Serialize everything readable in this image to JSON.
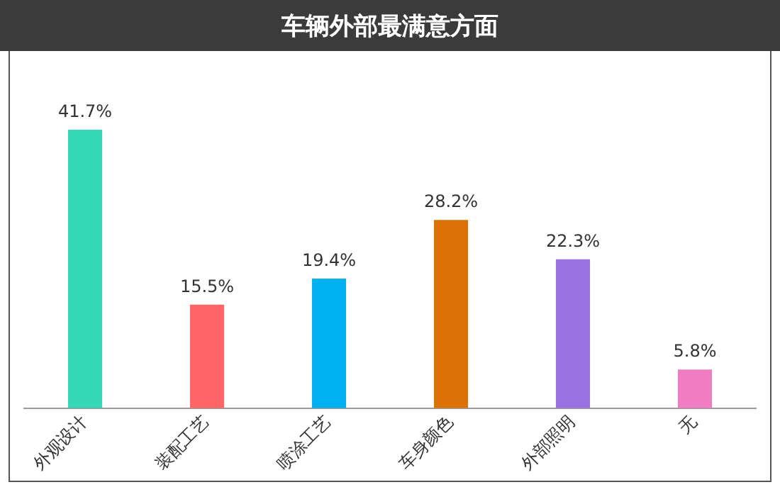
{
  "chart_data": {
    "type": "bar",
    "title": "车辆外部最满意方面",
    "categories": [
      "外观设计",
      "装配工艺",
      "喷涂工艺",
      "车身颜色",
      "外部照明",
      "无"
    ],
    "values": [
      41.7,
      15.5,
      19.4,
      28.2,
      22.3,
      5.8
    ],
    "value_labels": [
      "41.7%",
      "15.5%",
      "19.4%",
      "28.2%",
      "22.3%",
      "5.8%"
    ],
    "colors": [
      "#36d7b7",
      "#ff6466",
      "#00b0ef",
      "#dc7205",
      "#9b71e1",
      "#f07cc1"
    ],
    "grid": false,
    "legend": false
  }
}
